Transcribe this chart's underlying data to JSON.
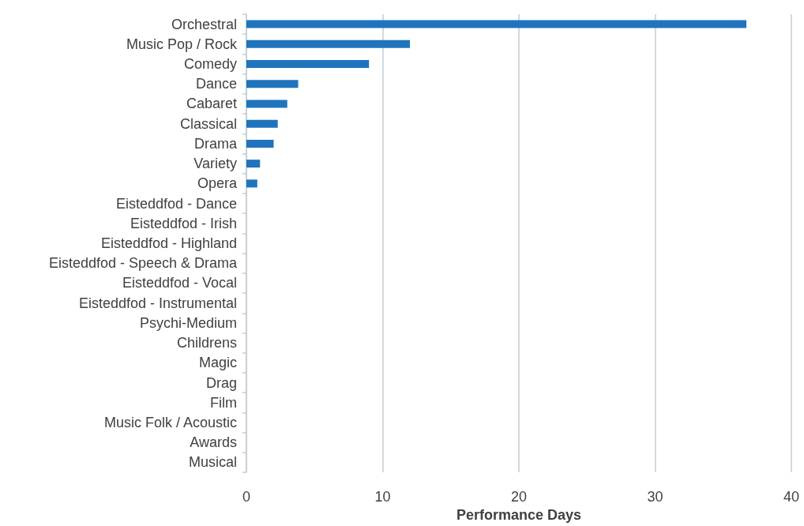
{
  "chart_data": {
    "type": "bar",
    "orientation": "horizontal",
    "xlabel": "Performance Days",
    "categories": [
      "Orchestral",
      "Music Pop / Rock",
      "Comedy",
      "Dance",
      "Cabaret",
      "Classical",
      "Drama",
      "Variety",
      "Opera",
      "Eisteddfod - Dance",
      "Eisteddfod - Irish",
      "Eisteddfod - Highland",
      "Eisteddfod - Speech & Drama",
      "Eisteddfod - Vocal",
      "Eisteddfod - Instrumental",
      "Psychi-Medium",
      "Childrens",
      "Magic",
      "Drag",
      "Film",
      "Music Folk / Acoustic",
      "Awards",
      "Musical"
    ],
    "values": [
      36.7,
      12.0,
      9.0,
      3.8,
      3.0,
      2.3,
      2.0,
      1.0,
      0.8,
      0,
      0,
      0,
      0,
      0,
      0,
      0,
      0,
      0,
      0,
      0,
      0,
      0,
      0
    ],
    "color": "#1f74bd",
    "xlim": [
      0,
      40
    ],
    "xticks": [
      0,
      10,
      20,
      30,
      40
    ],
    "grid": "x"
  }
}
